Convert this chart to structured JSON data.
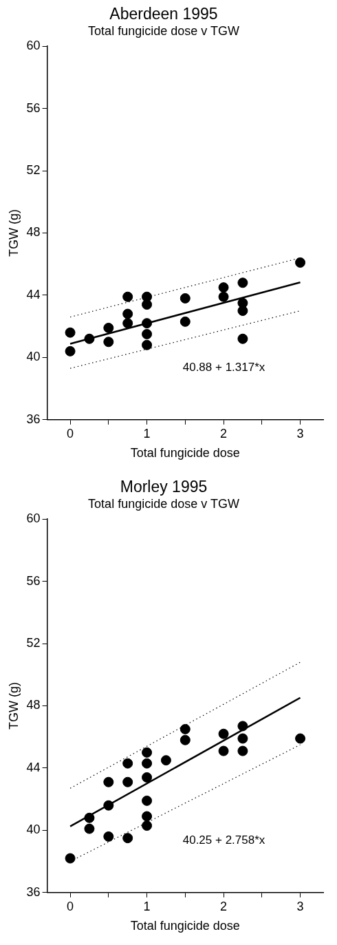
{
  "chart_data": [
    {
      "type": "scatter",
      "title": "Aberdeen 1995",
      "subtitle": "Total fungicide dose v TGW",
      "xlabel": "Total fungicide dose",
      "ylabel": "TGW (g)",
      "annotations": [
        "40.88 + 1.317*x"
      ],
      "xlim": [
        -0.3,
        3.3
      ],
      "xticks": [
        0,
        {
          "value": 0.5,
          "label": null
        },
        1,
        {
          "value": 1.5,
          "label": null
        },
        2,
        {
          "value": 2.5,
          "label": null
        },
        3
      ],
      "ylim": [
        36,
        60
      ],
      "yticks": [
        36,
        40,
        44,
        48,
        52,
        56,
        60
      ],
      "grid": false,
      "legend": false,
      "marker": "circle",
      "series": [
        {
          "type": "scatter",
          "color": "#000000",
          "x": [
            0,
            0,
            0.25,
            0.5,
            0.5,
            0.75,
            0.75,
            0.75,
            1,
            1,
            1,
            1,
            1,
            1.5,
            1.5,
            2,
            2,
            2.25,
            2.25,
            2.25,
            2.25,
            3
          ],
          "values": [
            40.4,
            41.6,
            41.2,
            41.0,
            41.9,
            42.2,
            42.8,
            43.9,
            40.8,
            41.5,
            42.2,
            43.4,
            43.9,
            42.3,
            43.8,
            43.9,
            44.5,
            41.2,
            43.0,
            43.5,
            44.8,
            46.1
          ]
        },
        {
          "type": "line",
          "color": "#000000",
          "line_style": "solid",
          "marker": "none",
          "x": [
            0,
            3
          ],
          "values": [
            40.88,
            44.83
          ]
        },
        {
          "type": "line",
          "color": "#000000",
          "line_style": "dotted",
          "marker": "none",
          "x": [
            0,
            3
          ],
          "values": [
            39.3,
            43.0
          ]
        },
        {
          "type": "line",
          "color": "#000000",
          "line_style": "dotted",
          "marker": "none",
          "x": [
            0,
            3
          ],
          "values": [
            42.6,
            46.4
          ]
        }
      ]
    },
    {
      "type": "scatter",
      "title": "Morley 1995",
      "subtitle": "Total fungicide dose v TGW",
      "xlabel": "Total fungicide dose",
      "ylabel": "TGW (g)",
      "annotations": [
        "40.25 + 2.758*x"
      ],
      "xlim": [
        -0.3,
        3.3
      ],
      "xticks": [
        0,
        {
          "value": 0.5,
          "label": null
        },
        1,
        {
          "value": 1.5,
          "label": null
        },
        2,
        {
          "value": 2.5,
          "label": null
        },
        3
      ],
      "ylim": [
        36,
        60
      ],
      "yticks": [
        36,
        40,
        44,
        48,
        52,
        56,
        60
      ],
      "grid": false,
      "legend": false,
      "marker": "circle",
      "series": [
        {
          "type": "scatter",
          "color": "#000000",
          "x": [
            0,
            0.25,
            0.25,
            0.5,
            0.5,
            0.5,
            0.75,
            0.75,
            0.75,
            1,
            1,
            1,
            1,
            1,
            1,
            1.25,
            1.5,
            1.5,
            2,
            2,
            2.25,
            2.25,
            2.25,
            3
          ],
          "values": [
            38.2,
            40.1,
            40.8,
            39.6,
            41.6,
            43.1,
            39.5,
            43.1,
            44.3,
            40.3,
            40.9,
            41.9,
            43.4,
            44.3,
            45.0,
            44.5,
            45.8,
            46.5,
            45.1,
            46.2,
            45.1,
            45.9,
            46.7,
            45.9
          ]
        },
        {
          "type": "line",
          "color": "#000000",
          "line_style": "solid",
          "marker": "none",
          "x": [
            0,
            3
          ],
          "values": [
            40.25,
            48.52
          ]
        },
        {
          "type": "line",
          "color": "#000000",
          "line_style": "dotted",
          "marker": "none",
          "x": [
            0,
            3
          ],
          "values": [
            38.0,
            45.5
          ]
        },
        {
          "type": "line",
          "color": "#000000",
          "line_style": "dotted",
          "marker": "none",
          "x": [
            0,
            3
          ],
          "values": [
            42.7,
            50.8
          ]
        }
      ]
    }
  ]
}
